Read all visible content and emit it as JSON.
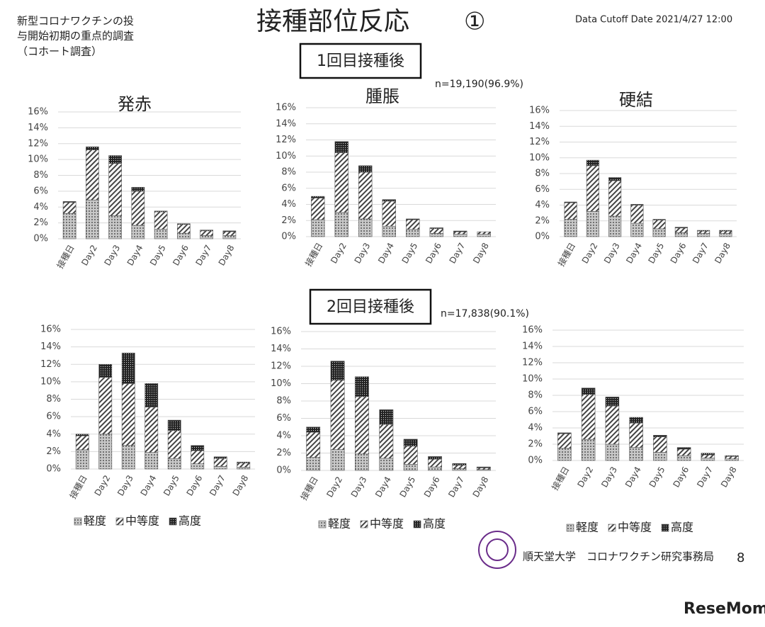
{
  "page": {
    "header": [
      "新型コロナワクチンの投",
      "与開始初期の重点的調査",
      "（コホート調査）"
    ],
    "title": "接種部位反応",
    "title_number": "①",
    "cutoff": "Data Cutoff Date 2021/4/27 12:00",
    "dose1": "1回目接種後",
    "dose1_n": "n=19,190(96.9%)",
    "dose2": "2回目接種後",
    "dose2_n": "n=17,838(90.1%)",
    "footer": "順天堂大学　コロナワクチン研究事務局",
    "page_number": "8",
    "watermark": "ReseMom"
  },
  "chart_data": [
    {
      "type": "bar",
      "stacked": true,
      "title": "発赤",
      "categories": [
        "接種日",
        "Day2",
        "Day3",
        "Day4",
        "Day5",
        "Day6",
        "Day7",
        "Day8"
      ],
      "ylim": [
        0,
        16
      ],
      "yticks": [
        {
          "value": 0,
          "label": "0%"
        },
        {
          "value": 2,
          "label": "2%"
        },
        {
          "value": 4,
          "label": "4%"
        },
        {
          "value": 6,
          "label": "6%"
        },
        {
          "value": 8,
          "label": "8%"
        },
        {
          "value": 10,
          "label": "10%"
        },
        {
          "value": 12,
          "label": "12%"
        },
        {
          "value": 14,
          "label": "14%"
        },
        {
          "value": 16,
          "label": "16%"
        }
      ],
      "grid": true,
      "legend": false,
      "series": [
        {
          "pattern": "dots",
          "color": "#555555",
          "values": [
            3.2,
            4.9,
            2.9,
            1.7,
            1.2,
            0.7,
            0.4,
            0.4
          ]
        },
        {
          "pattern": "hatch",
          "color": "#555555",
          "values": [
            1.4,
            6.3,
            6.6,
            4.3,
            2.2,
            1.1,
            0.6,
            0.5
          ]
        },
        {
          "pattern": "dense",
          "color": "#555555",
          "values": [
            0.1,
            0.4,
            1.0,
            0.5,
            0.1,
            0.1,
            0.1,
            0.1
          ]
        }
      ]
    },
    {
      "type": "bar",
      "stacked": true,
      "title": "腫脹",
      "categories": [
        "接種日",
        "Day2",
        "Day3",
        "Day4",
        "Day5",
        "Day6",
        "Day7",
        "Day8"
      ],
      "ylim": [
        0,
        16
      ],
      "yticks": [
        {
          "value": 0,
          "label": "0%"
        },
        {
          "value": 2,
          "label": "2%"
        },
        {
          "value": 4,
          "label": "4%"
        },
        {
          "value": 6,
          "label": "6%"
        },
        {
          "value": 8,
          "label": "8%"
        },
        {
          "value": 10,
          "label": "10%"
        },
        {
          "value": 12,
          "label": "12%"
        },
        {
          "value": 14,
          "label": "14%"
        },
        {
          "value": 16,
          "label": "16%"
        }
      ],
      "grid": true,
      "legend": false,
      "series": [
        {
          "pattern": "dots",
          "color": "#555555",
          "values": [
            2.1,
            3.0,
            2.2,
            1.3,
            0.9,
            0.4,
            0.3,
            0.3
          ]
        },
        {
          "pattern": "hatch",
          "color": "#555555",
          "values": [
            2.7,
            7.4,
            5.8,
            3.1,
            1.2,
            0.6,
            0.3,
            0.3
          ]
        },
        {
          "pattern": "dense",
          "color": "#555555",
          "values": [
            0.2,
            1.4,
            0.8,
            0.2,
            0.1,
            0.1,
            0.1,
            0.0
          ]
        }
      ]
    },
    {
      "type": "bar",
      "stacked": true,
      "title": "硬結",
      "categories": [
        "接種日",
        "Day2",
        "Day3",
        "Day4",
        "Day5",
        "Day6",
        "Day7",
        "Day8"
      ],
      "ylim": [
        0,
        16
      ],
      "yticks": [
        {
          "value": 0,
          "label": "0%"
        },
        {
          "value": 2,
          "label": "2%"
        },
        {
          "value": 4,
          "label": "4%"
        },
        {
          "value": 6,
          "label": "6%"
        },
        {
          "value": 8,
          "label": "8%"
        },
        {
          "value": 10,
          "label": "10%"
        },
        {
          "value": 12,
          "label": "12%"
        },
        {
          "value": 14,
          "label": "14%"
        },
        {
          "value": 16,
          "label": "16%"
        }
      ],
      "grid": true,
      "legend": false,
      "series": [
        {
          "pattern": "dots",
          "color": "#555555",
          "values": [
            2.2,
            3.2,
            2.6,
            1.7,
            1.0,
            0.5,
            0.4,
            0.4
          ]
        },
        {
          "pattern": "hatch",
          "color": "#555555",
          "values": [
            2.1,
            5.8,
            4.5,
            2.3,
            1.1,
            0.6,
            0.3,
            0.3
          ]
        },
        {
          "pattern": "dense",
          "color": "#555555",
          "values": [
            0.1,
            0.7,
            0.4,
            0.1,
            0.1,
            0.1,
            0.1,
            0.1
          ]
        }
      ]
    },
    {
      "type": "bar",
      "stacked": true,
      "categories": [
        "接種日",
        "Day2",
        "Day3",
        "Day4",
        "Day5",
        "Day6",
        "Day7",
        "Day8"
      ],
      "ylim": [
        0,
        16
      ],
      "yticks": [
        {
          "value": 0,
          "label": "0%"
        },
        {
          "value": 2,
          "label": "2%"
        },
        {
          "value": 4,
          "label": "4%"
        },
        {
          "value": 6,
          "label": "6%"
        },
        {
          "value": 8,
          "label": "8%"
        },
        {
          "value": 10,
          "label": "10%"
        },
        {
          "value": 12,
          "label": "12%"
        },
        {
          "value": 14,
          "label": "14%"
        },
        {
          "value": 16,
          "label": "16%"
        }
      ],
      "grid": true,
      "legend": true,
      "series": [
        {
          "name": "軽度",
          "pattern": "dots",
          "color": "#555555",
          "values": [
            2.2,
            4.0,
            2.7,
            1.9,
            1.2,
            0.6,
            0.3,
            0.2
          ]
        },
        {
          "name": "中等度",
          "pattern": "hatch",
          "color": "#555555",
          "values": [
            1.6,
            6.5,
            7.1,
            5.2,
            3.2,
            1.5,
            0.9,
            0.5
          ]
        },
        {
          "name": "高度",
          "pattern": "dense",
          "color": "#555555",
          "values": [
            0.2,
            1.5,
            3.5,
            2.7,
            1.2,
            0.6,
            0.2,
            0.1
          ]
        }
      ]
    },
    {
      "type": "bar",
      "stacked": true,
      "categories": [
        "接種日",
        "Day2",
        "Day3",
        "Day4",
        "Day5",
        "Day6",
        "Day7",
        "Day8"
      ],
      "ylim": [
        0,
        16
      ],
      "yticks": [
        {
          "value": 0,
          "label": "0%"
        },
        {
          "value": 2,
          "label": "2%"
        },
        {
          "value": 4,
          "label": "4%"
        },
        {
          "value": 6,
          "label": "6%"
        },
        {
          "value": 8,
          "label": "8%"
        },
        {
          "value": 10,
          "label": "10%"
        },
        {
          "value": 12,
          "label": "12%"
        },
        {
          "value": 14,
          "label": "14%"
        },
        {
          "value": 16,
          "label": "16%"
        }
      ],
      "grid": true,
      "legend": true,
      "series": [
        {
          "name": "軽度",
          "pattern": "dots",
          "color": "#555555",
          "values": [
            1.5,
            2.4,
            1.9,
            1.4,
            0.7,
            0.4,
            0.2,
            0.1
          ]
        },
        {
          "name": "中等度",
          "pattern": "hatch",
          "color": "#555555",
          "values": [
            2.9,
            8.0,
            6.6,
            3.9,
            2.1,
            0.9,
            0.4,
            0.2
          ]
        },
        {
          "name": "高度",
          "pattern": "dense",
          "color": "#555555",
          "values": [
            0.6,
            2.2,
            2.3,
            1.7,
            0.8,
            0.3,
            0.2,
            0.1
          ]
        }
      ]
    },
    {
      "type": "bar",
      "stacked": true,
      "categories": [
        "接種日",
        "Day2",
        "Day3",
        "Day4",
        "Day5",
        "Day6",
        "Day7",
        "Day8"
      ],
      "ylim": [
        0,
        16
      ],
      "yticks": [
        {
          "value": 0,
          "label": "0%"
        },
        {
          "value": 2,
          "label": "2%"
        },
        {
          "value": 4,
          "label": "4%"
        },
        {
          "value": 6,
          "label": "6%"
        },
        {
          "value": 8,
          "label": "8%"
        },
        {
          "value": 10,
          "label": "10%"
        },
        {
          "value": 12,
          "label": "12%"
        },
        {
          "value": 14,
          "label": "14%"
        },
        {
          "value": 16,
          "label": "16%"
        }
      ],
      "grid": true,
      "legend": true,
      "series": [
        {
          "name": "軽度",
          "pattern": "dots",
          "color": "#555555",
          "values": [
            1.5,
            2.6,
            2.0,
            1.6,
            1.0,
            0.6,
            0.3,
            0.2
          ]
        },
        {
          "name": "中等度",
          "pattern": "hatch",
          "color": "#555555",
          "values": [
            1.8,
            5.5,
            4.7,
            3.0,
            1.9,
            0.8,
            0.4,
            0.3
          ]
        },
        {
          "name": "高度",
          "pattern": "dense",
          "color": "#555555",
          "values": [
            0.1,
            0.8,
            1.1,
            0.7,
            0.2,
            0.2,
            0.2,
            0.1
          ]
        }
      ]
    }
  ]
}
